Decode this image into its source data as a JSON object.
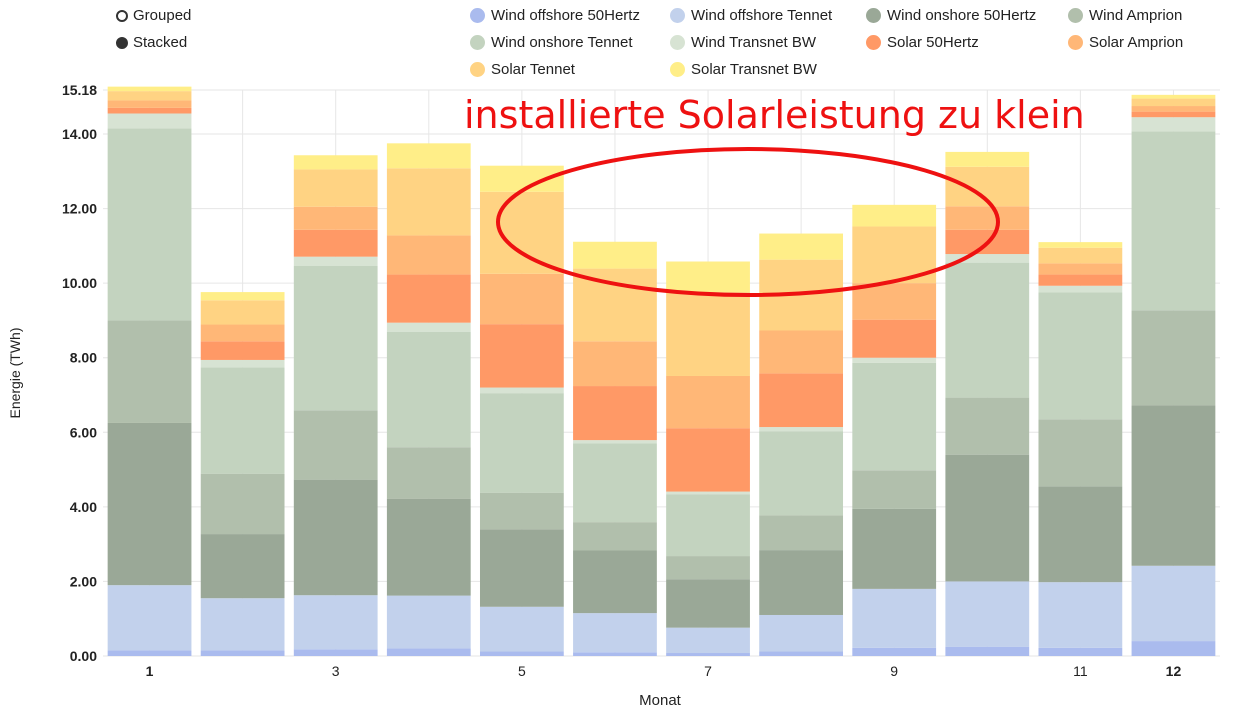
{
  "controls": {
    "grouped_label": "Grouped",
    "stacked_label": "Stacked",
    "selected": "Stacked"
  },
  "annotation": {
    "text": "installierte Solarleistung zu klein",
    "color": "#ee1111"
  },
  "chart_data": {
    "type": "bar",
    "stacked": true,
    "xlabel": "Monat",
    "ylabel": "Energie (TWh)",
    "ylim": [
      0,
      15.18
    ],
    "y_ticks": [
      "0.00",
      "2.00",
      "4.00",
      "6.00",
      "8.00",
      "10.00",
      "12.00",
      "14.00",
      "15.18"
    ],
    "categories": [
      "1",
      "2",
      "3",
      "4",
      "5",
      "6",
      "7",
      "8",
      "9",
      "10",
      "11",
      "12"
    ],
    "x_tick_labels": [
      "1",
      "",
      "3",
      "",
      "5",
      "",
      "7",
      "",
      "9",
      "",
      "11",
      "12"
    ],
    "grid": true,
    "legend_position": "top",
    "series": [
      {
        "name": "Wind offshore 50Hertz",
        "color": "#aabbee",
        "values": [
          0.15,
          0.15,
          0.18,
          0.2,
          0.12,
          0.1,
          0.08,
          0.12,
          0.22,
          0.25,
          0.22,
          0.4
        ]
      },
      {
        "name": "Wind offshore Tennet",
        "color": "#c2d1ec",
        "values": [
          1.75,
          1.4,
          1.45,
          1.42,
          1.2,
          1.05,
          0.68,
          0.98,
          1.58,
          1.75,
          1.76,
          2.02
        ]
      },
      {
        "name": "Wind onshore 50Hertz",
        "color": "#9aa897",
        "values": [
          4.35,
          1.72,
          3.1,
          2.6,
          2.08,
          1.68,
          1.3,
          1.74,
          2.15,
          3.4,
          2.57,
          4.3
        ]
      },
      {
        "name": "Wind Amprion",
        "color": "#b1bfac",
        "values": [
          2.75,
          1.62,
          1.86,
          1.38,
          0.98,
          0.76,
          0.62,
          0.93,
          1.03,
          1.53,
          1.8,
          2.55
        ]
      },
      {
        "name": "Wind onshore Tennet",
        "color": "#c3d3bf",
        "values": [
          5.15,
          2.85,
          3.87,
          3.09,
          2.67,
          2.11,
          1.66,
          2.26,
          2.88,
          3.62,
          3.4,
          4.8
        ]
      },
      {
        "name": "Wind Transnet BW",
        "color": "#d7e3d3",
        "values": [
          0.4,
          0.2,
          0.25,
          0.25,
          0.15,
          0.09,
          0.07,
          0.11,
          0.14,
          0.23,
          0.18,
          0.38
        ]
      },
      {
        "name": "Solar 50Hertz",
        "color": "#ff9966",
        "values": [
          0.15,
          0.5,
          0.72,
          1.29,
          1.7,
          1.45,
          1.7,
          1.44,
          1.02,
          0.65,
          0.3,
          0.15
        ]
      },
      {
        "name": "Solar Amprion",
        "color": "#ffb777",
        "values": [
          0.2,
          0.45,
          0.62,
          1.05,
          1.35,
          1.2,
          1.4,
          1.15,
          0.98,
          0.63,
          0.3,
          0.15
        ]
      },
      {
        "name": "Solar Tennet",
        "color": "#ffd383",
        "values": [
          0.25,
          0.65,
          1.0,
          1.8,
          2.2,
          1.95,
          2.25,
          1.9,
          1.52,
          1.06,
          0.42,
          0.2
        ]
      },
      {
        "name": "Solar Transnet BW",
        "color": "#ffee88",
        "values": [
          0.12,
          0.22,
          0.38,
          0.67,
          0.7,
          0.72,
          0.82,
          0.7,
          0.58,
          0.4,
          0.15,
          0.1
        ]
      }
    ]
  }
}
